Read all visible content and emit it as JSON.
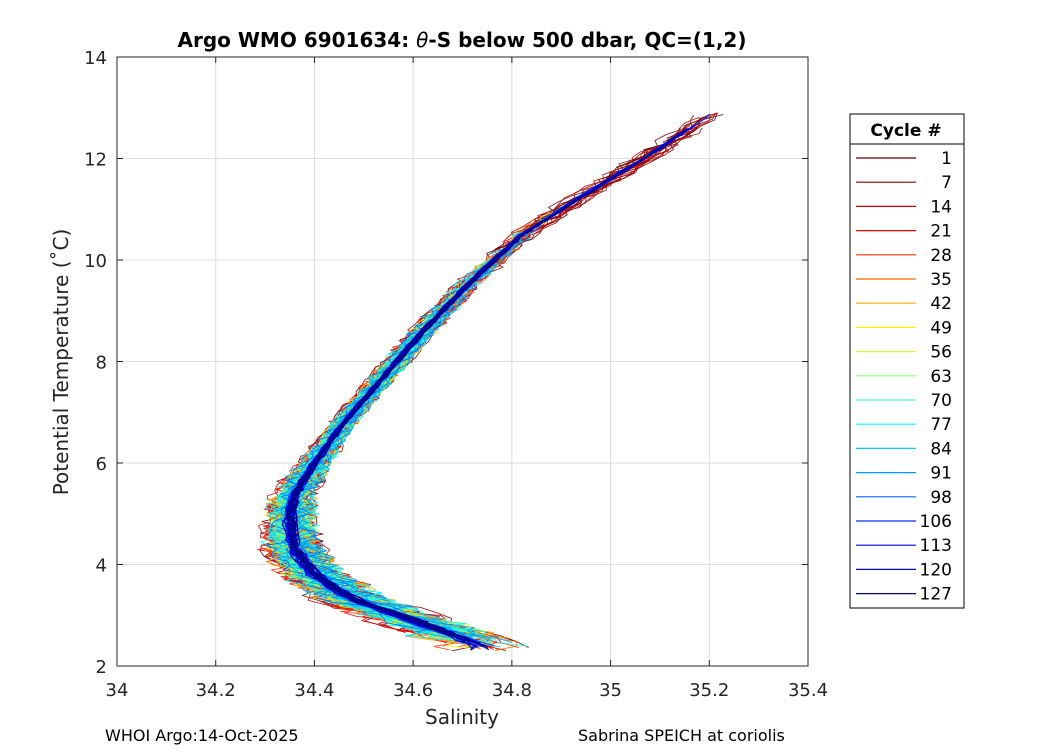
{
  "chart_data": {
    "type": "line",
    "title_prefix": "Argo WMO 6901634: ",
    "title_theta": "θ",
    "title_suffix": "-S below 500 dbar,  QC=(1,2)",
    "xlabel": "Salinity",
    "ylabel": "Potential Temperature (˚C)",
    "xlim": [
      34,
      35.4
    ],
    "ylim": [
      2,
      14
    ],
    "xticks": [
      "34",
      "34.2",
      "34.4",
      "34.6",
      "34.8",
      "35",
      "35.2",
      "35.4"
    ],
    "yticks": [
      "2",
      "4",
      "6",
      "8",
      "10",
      "12",
      "14"
    ],
    "grid": true,
    "legend": {
      "title": "Cycle #",
      "placement": "right",
      "entries": [
        {
          "label": "1",
          "color": "#5a0000"
        },
        {
          "label": "7",
          "color": "#8b0000"
        },
        {
          "label": "14",
          "color": "#bf0000"
        },
        {
          "label": "21",
          "color": "#e60000"
        },
        {
          "label": "28",
          "color": "#ff3300"
        },
        {
          "label": "35",
          "color": "#ff6600"
        },
        {
          "label": "42",
          "color": "#ffaa00"
        },
        {
          "label": "49",
          "color": "#ffee00"
        },
        {
          "label": "56",
          "color": "#ccff33"
        },
        {
          "label": "63",
          "color": "#88ff77"
        },
        {
          "label": "70",
          "color": "#44ffbb"
        },
        {
          "label": "77",
          "color": "#00ffff"
        },
        {
          "label": "84",
          "color": "#00ccff"
        },
        {
          "label": "91",
          "color": "#0099ff"
        },
        {
          "label": "98",
          "color": "#0066ff"
        },
        {
          "label": "106",
          "color": "#0033ff"
        },
        {
          "label": "113",
          "color": "#0000ee"
        },
        {
          "label": "120",
          "color": "#0000bb"
        },
        {
          "label": "127",
          "color": "#00008b"
        }
      ]
    },
    "profile_envelope": {
      "salinity": [
        34.74,
        34.6,
        34.48,
        34.4,
        34.36,
        34.35,
        34.36,
        34.4,
        34.46,
        34.54,
        34.62,
        34.72,
        34.82,
        34.95,
        35.1,
        35.21
      ],
      "theta": [
        2.4,
        2.9,
        3.3,
        3.8,
        4.3,
        4.9,
        5.4,
        6.0,
        6.8,
        7.7,
        8.6,
        9.6,
        10.5,
        11.3,
        12.2,
        12.9
      ]
    }
  },
  "footer": {
    "left": "WHOI Argo:14-Oct-2025",
    "right": "Sabrina SPEICH at coriolis"
  }
}
